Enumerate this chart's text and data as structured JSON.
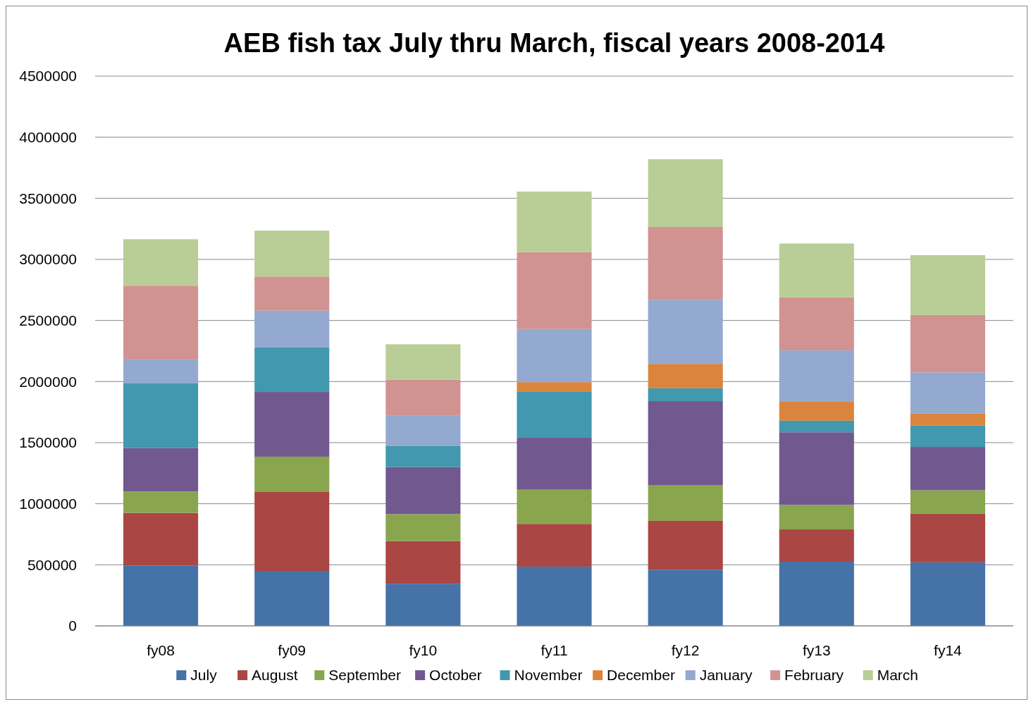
{
  "chart_data": {
    "type": "bar",
    "title": "AEB fish tax July thru March, fiscal years 2008-2014",
    "categories": [
      "fy08",
      "fy09",
      "fy10",
      "fy11",
      "fy12",
      "fy13",
      "fy14"
    ],
    "stacked": true,
    "ylim": [
      0,
      4500000
    ],
    "yticks": [
      0,
      500000,
      1000000,
      1500000,
      2000000,
      2500000,
      3000000,
      3500000,
      4000000,
      4500000
    ],
    "grid": "y",
    "legend": "bottom",
    "series": [
      {
        "name": "July",
        "color": "#4572a7",
        "values": [
          495000,
          450000,
          345000,
          485000,
          460000,
          525000,
          520000
        ]
      },
      {
        "name": "August",
        "color": "#aa4643",
        "values": [
          430000,
          650000,
          350000,
          350000,
          400000,
          265000,
          400000
        ]
      },
      {
        "name": "September",
        "color": "#89a54e",
        "values": [
          175000,
          285000,
          220000,
          280000,
          290000,
          200000,
          190000
        ]
      },
      {
        "name": "October",
        "color": "#71588f",
        "values": [
          355000,
          530000,
          385000,
          425000,
          690000,
          595000,
          355000
        ]
      },
      {
        "name": "November",
        "color": "#4198af",
        "values": [
          530000,
          365000,
          175000,
          380000,
          105000,
          95000,
          175000
        ]
      },
      {
        "name": "December",
        "color": "#db843d",
        "values": [
          0,
          0,
          0,
          75000,
          200000,
          155000,
          100000
        ]
      },
      {
        "name": "January",
        "color": "#93a9cf",
        "values": [
          195000,
          300000,
          245000,
          435000,
          525000,
          420000,
          335000
        ]
      },
      {
        "name": "February",
        "color": "#d19392",
        "values": [
          605000,
          280000,
          295000,
          630000,
          595000,
          435000,
          470000
        ]
      },
      {
        "name": "March",
        "color": "#b9cd96",
        "values": [
          380000,
          375000,
          290000,
          495000,
          555000,
          440000,
          490000
        ]
      }
    ]
  }
}
